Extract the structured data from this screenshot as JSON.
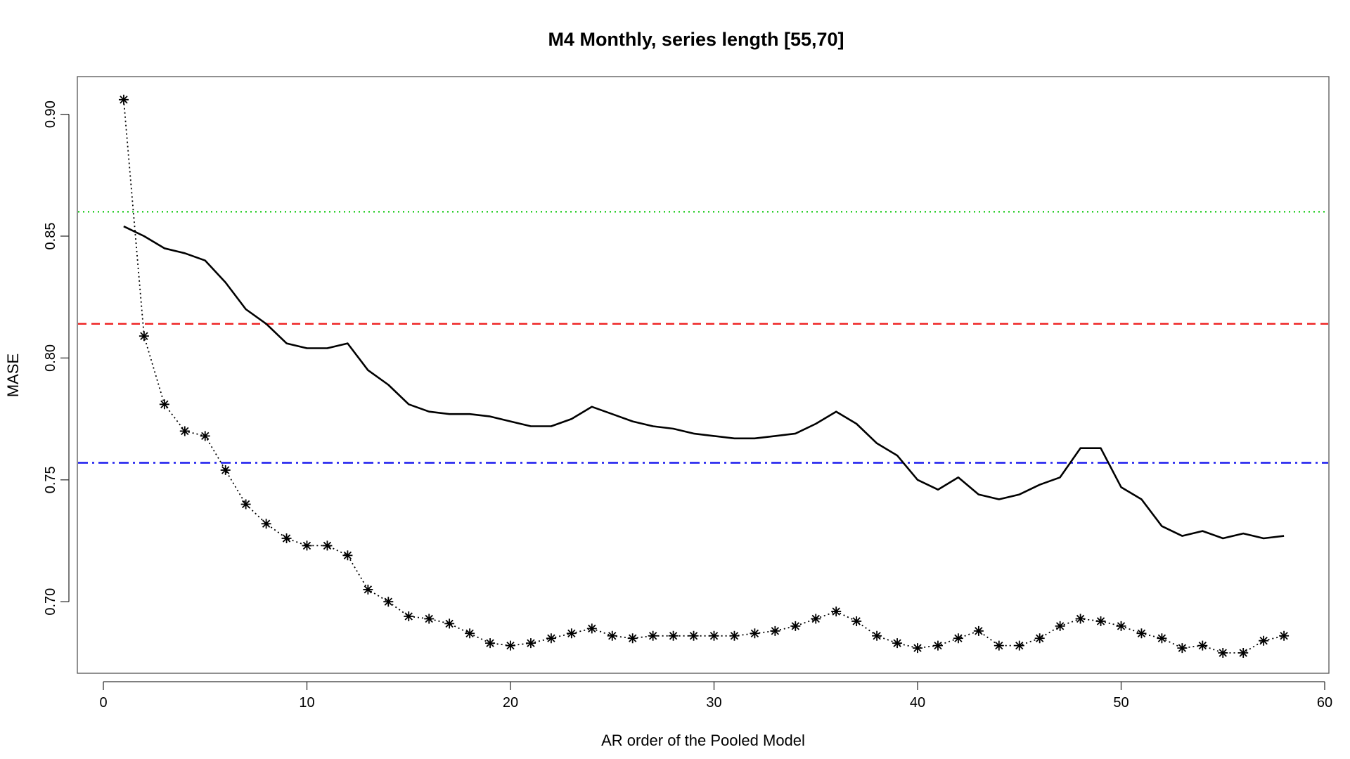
{
  "chart_data": {
    "type": "line",
    "title": "M4 Monthly, series length [55,70]",
    "xlabel": "AR order of the Pooled Model",
    "ylabel": "MASE",
    "xlim": [
      -2,
      60
    ],
    "ylim": [
      0.67,
      0.915
    ],
    "x_ticks": [
      0,
      10,
      20,
      30,
      40,
      50,
      60
    ],
    "x_tick_labels": [
      "0",
      "10",
      "20",
      "30",
      "40",
      "50",
      "60"
    ],
    "y_ticks": [
      0.7,
      0.75,
      0.8,
      0.85,
      0.9
    ],
    "y_tick_labels": [
      "0.70",
      "0.75",
      "0.80",
      "0.85",
      "0.90"
    ],
    "grid": false,
    "series": [
      {
        "style": "solid",
        "color": "#000000",
        "x": [
          1,
          2,
          3,
          4,
          5,
          6,
          7,
          8,
          9,
          10,
          11,
          12,
          13,
          14,
          15,
          16,
          17,
          18,
          19,
          20,
          21,
          22,
          23,
          24,
          25,
          26,
          27,
          28,
          29,
          30,
          31,
          32,
          33,
          34,
          35,
          36,
          37,
          38,
          39,
          40,
          41,
          42,
          43,
          44,
          45,
          46,
          47,
          48,
          49,
          50,
          51,
          52,
          53,
          54,
          55,
          56,
          57,
          58
        ],
        "values": [
          0.854,
          0.85,
          0.845,
          0.843,
          0.84,
          0.831,
          0.82,
          0.814,
          0.806,
          0.804,
          0.804,
          0.806,
          0.795,
          0.789,
          0.781,
          0.778,
          0.777,
          0.777,
          0.776,
          0.774,
          0.772,
          0.772,
          0.775,
          0.78,
          0.777,
          0.774,
          0.772,
          0.771,
          0.769,
          0.768,
          0.767,
          0.767,
          0.768,
          0.769,
          0.773,
          0.778,
          0.773,
          0.765,
          0.76,
          0.75,
          0.746,
          0.751,
          0.744,
          0.742,
          0.744,
          0.748,
          0.751,
          0.763,
          0.763,
          0.747,
          0.742,
          0.731,
          0.727,
          0.729,
          0.726,
          0.728,
          0.726,
          0.727
        ]
      },
      {
        "style": "dotted-asterisk",
        "color": "#000000",
        "x": [
          1,
          2,
          3,
          4,
          5,
          6,
          7,
          8,
          9,
          10,
          11,
          12,
          13,
          14,
          15,
          16,
          17,
          18,
          19,
          20,
          21,
          22,
          23,
          24,
          25,
          26,
          27,
          28,
          29,
          30,
          31,
          32,
          33,
          34,
          35,
          36,
          37,
          38,
          39,
          40,
          41,
          42,
          43,
          44,
          45,
          46,
          47,
          48,
          49,
          50,
          51,
          52,
          53,
          54,
          55,
          56,
          57,
          58
        ],
        "values": [
          0.906,
          0.809,
          0.781,
          0.77,
          0.768,
          0.754,
          0.74,
          0.732,
          0.726,
          0.723,
          0.723,
          0.719,
          0.705,
          0.7,
          0.694,
          0.693,
          0.691,
          0.687,
          0.683,
          0.682,
          0.683,
          0.685,
          0.687,
          0.689,
          0.686,
          0.685,
          0.686,
          0.686,
          0.686,
          0.686,
          0.686,
          0.687,
          0.688,
          0.69,
          0.693,
          0.696,
          0.692,
          0.686,
          0.683,
          0.681,
          0.682,
          0.685,
          0.688,
          0.682,
          0.682,
          0.685,
          0.69,
          0.693,
          0.692,
          0.69,
          0.687,
          0.685,
          0.681,
          0.682,
          0.679,
          0.679,
          0.684,
          0.686
        ]
      }
    ],
    "hlines": [
      {
        "value": 0.86,
        "color": "#22cc22",
        "style": "dotted"
      },
      {
        "value": 0.814,
        "color": "#ee2222",
        "style": "dashed"
      },
      {
        "value": 0.757,
        "color": "#1111ee",
        "style": "dashdot"
      }
    ]
  }
}
